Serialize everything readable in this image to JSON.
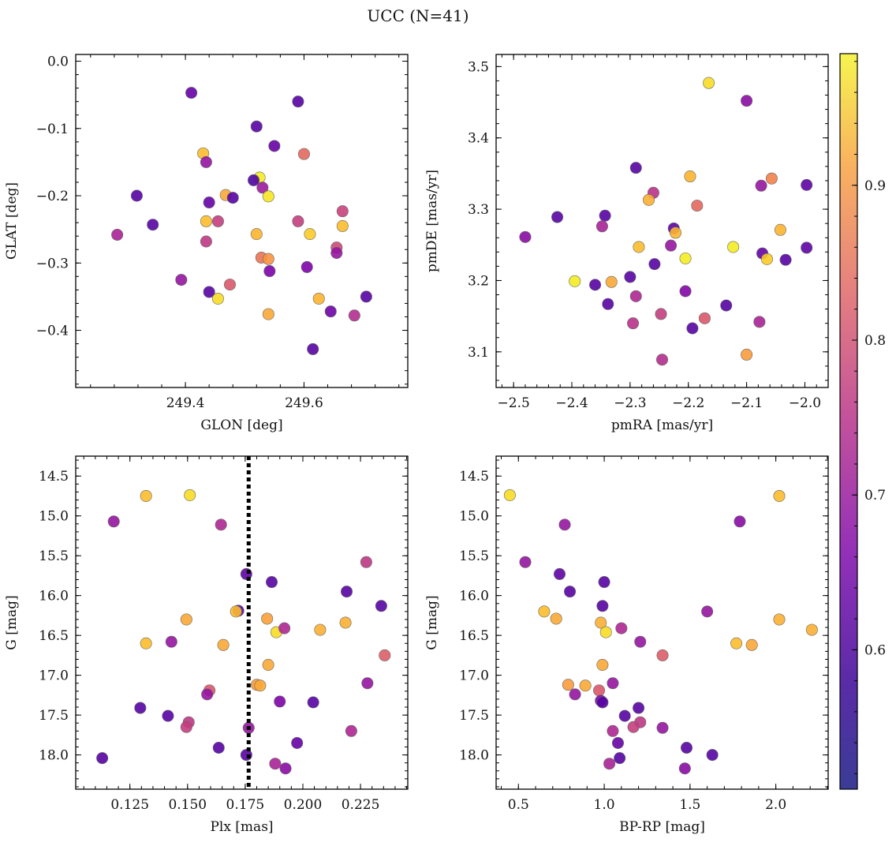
{
  "figure": {
    "title": "UCC (N=41)"
  },
  "colorbar": {
    "range": [
      0.51,
      0.985
    ],
    "ticks": [
      0.6,
      0.7,
      0.8,
      0.9
    ],
    "tick_labels": [
      "0.6",
      "0.7",
      "0.8",
      "0.9"
    ],
    "colormap": "plasma"
  },
  "chart_data": [
    {
      "type": "scatter",
      "xlabel": "GLON [deg]",
      "ylabel": "GLAT [deg]",
      "xlim": [
        249.215,
        249.775
      ],
      "ylim": [
        -0.485,
        0.01
      ],
      "xticks": [
        249.4,
        249.6
      ],
      "xtick_labels": [
        "249.4",
        "249.6"
      ],
      "yticks": [
        0.0,
        -0.1,
        -0.2,
        -0.3,
        -0.4
      ],
      "ytick_labels": [
        "0.0",
        "−0.1",
        "−0.2",
        "−0.3",
        "−0.4"
      ],
      "points": [
        [
          249.41,
          -0.047,
          0.55
        ],
        [
          249.59,
          -0.06,
          0.53
        ],
        [
          249.52,
          -0.097,
          0.53
        ],
        [
          249.55,
          -0.126,
          0.55
        ],
        [
          249.6,
          -0.138,
          0.78
        ],
        [
          249.43,
          -0.137,
          0.91
        ],
        [
          249.435,
          -0.15,
          0.62
        ],
        [
          249.525,
          -0.173,
          0.97
        ],
        [
          249.515,
          -0.177,
          0.52
        ],
        [
          249.53,
          -0.188,
          0.63
        ],
        [
          249.318,
          -0.2,
          0.53
        ],
        [
          249.468,
          -0.199,
          0.88
        ],
        [
          249.48,
          -0.203,
          0.53
        ],
        [
          249.54,
          -0.201,
          0.96
        ],
        [
          249.44,
          -0.21,
          0.55
        ],
        [
          249.665,
          -0.223,
          0.71
        ],
        [
          249.345,
          -0.243,
          0.53
        ],
        [
          249.435,
          -0.238,
          0.91
        ],
        [
          249.455,
          -0.238,
          0.7
        ],
        [
          249.59,
          -0.238,
          0.7
        ],
        [
          249.665,
          -0.245,
          0.91
        ],
        [
          249.285,
          -0.258,
          0.65
        ],
        [
          249.52,
          -0.257,
          0.9
        ],
        [
          249.61,
          -0.257,
          0.93
        ],
        [
          249.435,
          -0.268,
          0.69
        ],
        [
          249.655,
          -0.277,
          0.72
        ],
        [
          249.655,
          -0.285,
          0.62
        ],
        [
          249.528,
          -0.292,
          0.8
        ],
        [
          249.54,
          -0.294,
          0.85
        ],
        [
          249.605,
          -0.306,
          0.58
        ],
        [
          249.542,
          -0.312,
          0.58
        ],
        [
          249.393,
          -0.325,
          0.62
        ],
        [
          249.475,
          -0.332,
          0.75
        ],
        [
          249.44,
          -0.343,
          0.53
        ],
        [
          249.455,
          -0.353,
          0.95
        ],
        [
          249.705,
          -0.35,
          0.53
        ],
        [
          249.625,
          -0.353,
          0.9
        ],
        [
          249.645,
          -0.372,
          0.56
        ],
        [
          249.54,
          -0.376,
          0.88
        ],
        [
          249.685,
          -0.378,
          0.67
        ],
        [
          249.615,
          -0.428,
          0.53
        ]
      ]
    },
    {
      "type": "scatter",
      "xlabel": "pmRA [mas/yr]",
      "ylabel": "pmDE [mas/yr]",
      "xlim": [
        -2.53,
        -1.96
      ],
      "ylim": [
        3.05,
        3.517
      ],
      "xticks": [
        -2.5,
        -2.4,
        -2.3,
        -2.2,
        -2.1,
        -2.0
      ],
      "xtick_labels": [
        "−2.5",
        "−2.4",
        "−2.3",
        "−2.2",
        "−2.1",
        "−2.0"
      ],
      "yticks": [
        3.1,
        3.2,
        3.3,
        3.4,
        3.5
      ],
      "ytick_labels": [
        "3.1",
        "3.2",
        "3.3",
        "3.4",
        "3.5"
      ],
      "points": [
        [
          -2.165,
          3.477,
          0.95
        ],
        [
          -2.1,
          3.452,
          0.6
        ],
        [
          -2.29,
          3.358,
          0.53
        ],
        [
          -2.197,
          3.346,
          0.9
        ],
        [
          -2.057,
          3.343,
          0.82
        ],
        [
          -2.075,
          3.333,
          0.62
        ],
        [
          -1.997,
          3.334,
          0.54
        ],
        [
          -2.26,
          3.323,
          0.68
        ],
        [
          -2.268,
          3.313,
          0.89
        ],
        [
          -2.185,
          3.305,
          0.78
        ],
        [
          -2.425,
          3.289,
          0.53
        ],
        [
          -2.343,
          3.291,
          0.53
        ],
        [
          -2.348,
          3.276,
          0.65
        ],
        [
          -2.225,
          3.273,
          0.54
        ],
        [
          -2.222,
          3.267,
          0.9
        ],
        [
          -2.042,
          3.271,
          0.9
        ],
        [
          -2.48,
          3.261,
          0.6
        ],
        [
          -2.285,
          3.247,
          0.91
        ],
        [
          -2.23,
          3.249,
          0.62
        ],
        [
          -2.123,
          3.247,
          0.97
        ],
        [
          -2.073,
          3.238,
          0.55
        ],
        [
          -1.997,
          3.246,
          0.54
        ],
        [
          -2.205,
          3.231,
          0.97
        ],
        [
          -2.065,
          3.23,
          0.93
        ],
        [
          -2.033,
          3.229,
          0.53
        ],
        [
          -2.258,
          3.223,
          0.53
        ],
        [
          -2.395,
          3.199,
          0.97
        ],
        [
          -2.332,
          3.198,
          0.88
        ],
        [
          -2.36,
          3.194,
          0.53
        ],
        [
          -2.3,
          3.205,
          0.53
        ],
        [
          -2.205,
          3.185,
          0.59
        ],
        [
          -2.29,
          3.178,
          0.66
        ],
        [
          -2.338,
          3.167,
          0.53
        ],
        [
          -2.135,
          3.165,
          0.53
        ],
        [
          -2.247,
          3.153,
          0.7
        ],
        [
          -2.172,
          3.147,
          0.75
        ],
        [
          -2.295,
          3.14,
          0.68
        ],
        [
          -2.078,
          3.142,
          0.65
        ],
        [
          -2.193,
          3.133,
          0.53
        ],
        [
          -2.1,
          3.096,
          0.86
        ],
        [
          -2.245,
          3.089,
          0.67
        ]
      ]
    },
    {
      "type": "scatter",
      "xlabel": "Plx [mas]",
      "ylabel": "G [mag]",
      "xlim": [
        0.1015,
        0.2455
      ],
      "ylim": [
        18.43,
        14.25
      ],
      "y_inverted": true,
      "vline_x": 0.1765,
      "xticks": [
        0.125,
        0.15,
        0.175,
        0.2,
        0.225
      ],
      "xtick_labels": [
        "0.125",
        "0.150",
        "0.175",
        "0.200",
        "0.225"
      ],
      "yticks": [
        14.5,
        15.0,
        15.5,
        16.0,
        16.5,
        17.0,
        17.5,
        18.0
      ],
      "ytick_labels": [
        "14.5",
        "15.0",
        "15.5",
        "16.0",
        "16.5",
        "17.0",
        "17.5",
        "18.0"
      ],
      "points": [
        [
          0.132,
          14.75,
          0.91
        ],
        [
          0.151,
          14.74,
          0.95
        ],
        [
          0.118,
          15.07,
          0.62
        ],
        [
          0.1645,
          15.11,
          0.66
        ],
        [
          0.2275,
          15.58,
          0.69
        ],
        [
          0.1755,
          15.73,
          0.54
        ],
        [
          0.1865,
          15.83,
          0.53
        ],
        [
          0.219,
          15.95,
          0.53
        ],
        [
          0.234,
          16.13,
          0.53
        ],
        [
          0.172,
          16.19,
          0.53
        ],
        [
          0.171,
          16.2,
          0.91
        ],
        [
          0.1495,
          16.3,
          0.88
        ],
        [
          0.1845,
          16.29,
          0.87
        ],
        [
          0.2185,
          16.34,
          0.89
        ],
        [
          0.1885,
          16.46,
          0.95
        ],
        [
          0.192,
          16.41,
          0.66
        ],
        [
          0.2075,
          16.43,
          0.89
        ],
        [
          0.143,
          16.58,
          0.62
        ],
        [
          0.132,
          16.6,
          0.91
        ],
        [
          0.1655,
          16.62,
          0.88
        ],
        [
          0.2355,
          16.75,
          0.76
        ],
        [
          0.185,
          16.87,
          0.88
        ],
        [
          0.18,
          17.12,
          0.86
        ],
        [
          0.1815,
          17.13,
          0.88
        ],
        [
          0.228,
          17.1,
          0.62
        ],
        [
          0.1595,
          17.19,
          0.75
        ],
        [
          0.1585,
          17.24,
          0.62
        ],
        [
          0.19,
          17.33,
          0.58
        ],
        [
          0.2045,
          17.34,
          0.53
        ],
        [
          0.1295,
          17.41,
          0.53
        ],
        [
          0.1415,
          17.51,
          0.53
        ],
        [
          0.1505,
          17.59,
          0.69
        ],
        [
          0.1495,
          17.65,
          0.7
        ],
        [
          0.1765,
          17.66,
          0.62
        ],
        [
          0.221,
          17.7,
          0.66
        ],
        [
          0.1975,
          17.85,
          0.55
        ],
        [
          0.1635,
          17.91,
          0.53
        ],
        [
          0.1755,
          18.0,
          0.53
        ],
        [
          0.113,
          18.04,
          0.53
        ],
        [
          0.188,
          18.11,
          0.65
        ],
        [
          0.1925,
          18.17,
          0.6
        ]
      ]
    },
    {
      "type": "scatter",
      "xlabel": "BP-RP [mag]",
      "ylabel": "G [mag]",
      "xlim": [
        0.37,
        2.305
      ],
      "ylim": [
        18.43,
        14.25
      ],
      "y_inverted": true,
      "xticks": [
        0.5,
        1.0,
        1.5,
        2.0
      ],
      "xtick_labels": [
        "0.5",
        "1.0",
        "1.5",
        "2.0"
      ],
      "yticks": [
        14.5,
        15.0,
        15.5,
        16.0,
        16.5,
        17.0,
        17.5,
        18.0
      ],
      "ytick_labels": [
        "14.5",
        "15.0",
        "15.5",
        "16.0",
        "16.5",
        "17.0",
        "17.5",
        "18.0"
      ],
      "points": [
        [
          0.45,
          14.74,
          0.95
        ],
        [
          2.02,
          14.75,
          0.91
        ],
        [
          0.77,
          15.11,
          0.62
        ],
        [
          1.79,
          15.07,
          0.6
        ],
        [
          0.54,
          15.58,
          0.62
        ],
        [
          0.74,
          15.73,
          0.54
        ],
        [
          1.0,
          15.83,
          0.53
        ],
        [
          0.8,
          15.95,
          0.53
        ],
        [
          0.99,
          16.13,
          0.53
        ],
        [
          0.65,
          16.2,
          0.91
        ],
        [
          1.6,
          16.2,
          0.62
        ],
        [
          0.72,
          16.29,
          0.88
        ],
        [
          0.98,
          16.34,
          0.89
        ],
        [
          1.01,
          16.46,
          0.95
        ],
        [
          1.1,
          16.41,
          0.66
        ],
        [
          2.02,
          16.3,
          0.89
        ],
        [
          2.21,
          16.43,
          0.89
        ],
        [
          1.21,
          16.58,
          0.62
        ],
        [
          1.77,
          16.6,
          0.91
        ],
        [
          1.86,
          16.62,
          0.88
        ],
        [
          1.34,
          16.75,
          0.76
        ],
        [
          0.99,
          16.87,
          0.88
        ],
        [
          0.79,
          17.12,
          0.86
        ],
        [
          0.89,
          17.13,
          0.88
        ],
        [
          1.05,
          17.1,
          0.62
        ],
        [
          0.97,
          17.19,
          0.75
        ],
        [
          0.83,
          17.24,
          0.62
        ],
        [
          0.98,
          17.32,
          0.58
        ],
        [
          0.99,
          17.34,
          0.53
        ],
        [
          1.2,
          17.41,
          0.53
        ],
        [
          1.12,
          17.51,
          0.53
        ],
        [
          1.21,
          17.59,
          0.69
        ],
        [
          1.17,
          17.65,
          0.7
        ],
        [
          1.34,
          17.66,
          0.62
        ],
        [
          1.05,
          17.7,
          0.66
        ],
        [
          1.08,
          17.85,
          0.55
        ],
        [
          1.48,
          17.91,
          0.53
        ],
        [
          1.63,
          18.0,
          0.53
        ],
        [
          1.09,
          18.04,
          0.53
        ],
        [
          1.03,
          18.11,
          0.65
        ],
        [
          1.47,
          18.17,
          0.6
        ]
      ]
    }
  ]
}
